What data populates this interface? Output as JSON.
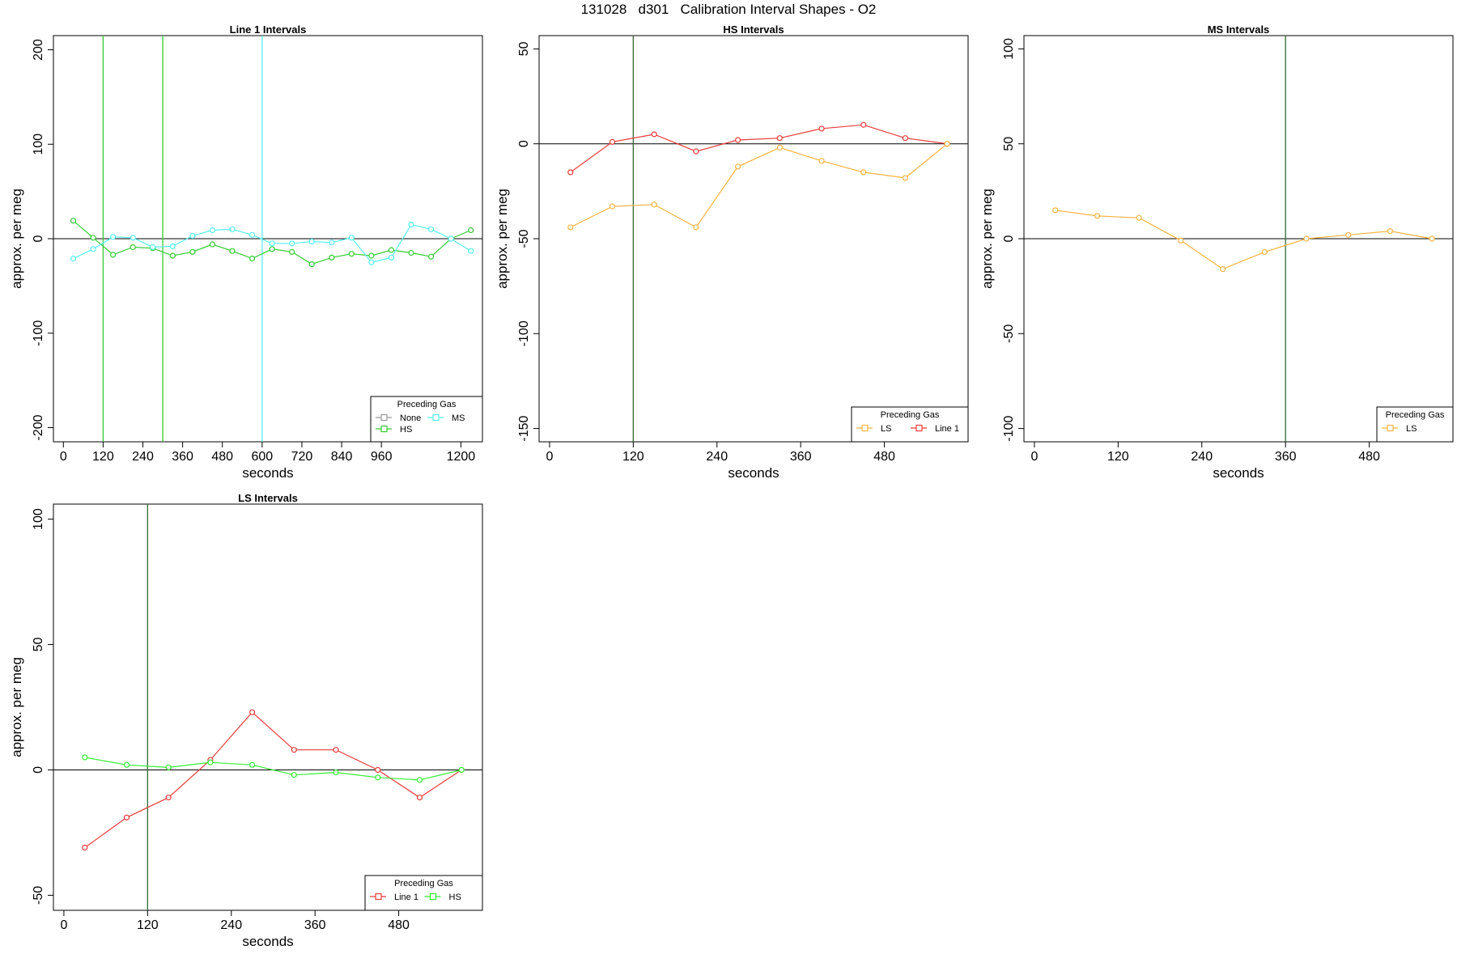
{
  "page": {
    "title": "131028   d301   Calibration Interval Shapes - O2"
  },
  "chart_data": [
    {
      "type": "line",
      "title": "Line 1 Intervals",
      "xlabel": "seconds",
      "ylabel": "approx. per meg",
      "xlim": [
        -30,
        1265
      ],
      "ylim": [
        -215,
        215
      ],
      "xticks": [
        0,
        120,
        240,
        360,
        480,
        600,
        720,
        840,
        960,
        1200
      ],
      "yticks": [
        -200,
        -100,
        0,
        100,
        200
      ],
      "vlines": [
        {
          "x": 120,
          "color": "#33cc33"
        },
        {
          "x": 300,
          "color": "#33cc33"
        },
        {
          "x": 600,
          "color": "#55eeee"
        }
      ],
      "legend": {
        "title": "Preceding Gas",
        "position": "bottom-right",
        "entries": [
          {
            "label": "None",
            "color": "#999999"
          },
          {
            "label": "MS",
            "color": "#55eeee"
          },
          {
            "label": "HS",
            "color": "#33cc33"
          }
        ]
      },
      "series": [
        {
          "name": "HS",
          "color": "#33cc33",
          "x": [
            30,
            90,
            150,
            210,
            270,
            330,
            390,
            450,
            510,
            570,
            630,
            690,
            750,
            810,
            870,
            930,
            990,
            1050,
            1110,
            1170,
            1230
          ],
          "y": [
            19,
            1,
            -17,
            -9,
            -10,
            -18,
            -14,
            -6,
            -13,
            -21,
            -11,
            -14,
            -27,
            -20,
            -16,
            -18,
            -12,
            -15,
            -19,
            0,
            9
          ]
        },
        {
          "name": "MS",
          "color": "#55eeee",
          "x": [
            30,
            90,
            150,
            210,
            270,
            330,
            390,
            450,
            510,
            570,
            630,
            690,
            750,
            810,
            870,
            930,
            990,
            1050,
            1110,
            1170,
            1230
          ],
          "y": [
            -21,
            -11,
            2,
            1,
            -9,
            -8,
            3,
            9,
            10,
            4,
            -5,
            -5,
            -3,
            -4,
            1,
            -25,
            -20,
            15,
            10,
            0,
            -13
          ]
        }
      ]
    },
    {
      "type": "line",
      "title": "HS Intervals",
      "xlabel": "seconds",
      "ylabel": "approx. per meg",
      "xlim": [
        -15,
        600
      ],
      "ylim": [
        -157,
        57
      ],
      "xticks": [
        0,
        120,
        240,
        360,
        480
      ],
      "yticks": [
        -150,
        -100,
        -50,
        0,
        50
      ],
      "vlines": [
        {
          "x": 120,
          "color": "#336633"
        }
      ],
      "legend": {
        "title": "Preceding Gas",
        "position": "bottom-right",
        "entries": [
          {
            "label": "LS",
            "color": "#f5b342"
          },
          {
            "label": "Line 1",
            "color": "#e83b3b"
          }
        ]
      },
      "series": [
        {
          "name": "Line 1",
          "color": "#e83b3b",
          "x": [
            30,
            90,
            150,
            210,
            270,
            330,
            390,
            450,
            510,
            570
          ],
          "y": [
            -15,
            1,
            5,
            -4,
            2,
            3,
            8,
            10,
            3,
            0
          ]
        },
        {
          "name": "LS",
          "color": "#f5b342",
          "x": [
            30,
            90,
            150,
            210,
            270,
            330,
            390,
            450,
            510,
            570
          ],
          "y": [
            -44,
            -33,
            -32,
            -44,
            -12,
            -2,
            -9,
            -15,
            -18,
            0
          ]
        }
      ]
    },
    {
      "type": "line",
      "title": "MS Intervals",
      "xlabel": "seconds",
      "ylabel": "approx. per meg",
      "xlim": [
        -15,
        600
      ],
      "ylim": [
        -107,
        107
      ],
      "xticks": [
        0,
        120,
        240,
        360,
        480
      ],
      "yticks": [
        -100,
        -50,
        0,
        50,
        100
      ],
      "vlines": [
        {
          "x": 360,
          "color": "#336633"
        }
      ],
      "legend": {
        "title": "Preceding Gas",
        "position": "bottom-right",
        "entries": [
          {
            "label": "LS",
            "color": "#f5b342"
          }
        ]
      },
      "series": [
        {
          "name": "LS",
          "color": "#f5b342",
          "x": [
            30,
            90,
            150,
            210,
            270,
            330,
            390,
            450,
            510,
            570
          ],
          "y": [
            15,
            12,
            11,
            -1,
            -16,
            -7,
            0,
            2,
            4,
            0
          ]
        }
      ]
    },
    {
      "type": "line",
      "title": "LS Intervals",
      "xlabel": "seconds",
      "ylabel": "approx. per meg",
      "xlim": [
        -15,
        600
      ],
      "ylim": [
        -56,
        106
      ],
      "xticks": [
        0,
        120,
        240,
        360,
        480
      ],
      "yticks": [
        -50,
        0,
        50,
        100
      ],
      "vlines": [
        {
          "x": 120,
          "color": "#336633"
        }
      ],
      "legend": {
        "title": "Preceding Gas",
        "position": "bottom-right",
        "entries": [
          {
            "label": "Line 1",
            "color": "#e83b3b"
          },
          {
            "label": "HS",
            "color": "#33ee33"
          }
        ]
      },
      "series": [
        {
          "name": "Line 1",
          "color": "#e83b3b",
          "x": [
            30,
            90,
            150,
            210,
            270,
            330,
            390,
            450,
            510,
            570
          ],
          "y": [
            -31,
            -19,
            -11,
            4,
            23,
            8,
            8,
            0,
            -11,
            0
          ]
        },
        {
          "name": "HS",
          "color": "#33ee33",
          "x": [
            30,
            90,
            150,
            210,
            270,
            330,
            390,
            450,
            510,
            570
          ],
          "y": [
            5,
            2,
            1,
            3,
            2,
            -2,
            -1,
            -3,
            -4,
            0
          ]
        }
      ]
    }
  ]
}
